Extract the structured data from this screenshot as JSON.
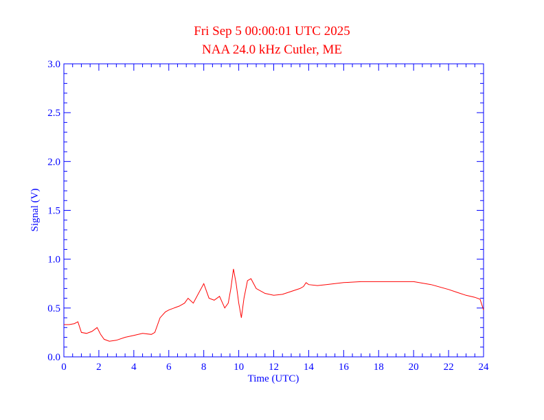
{
  "chart_data": {
    "type": "line",
    "title": "Fri Sep 5 00:00:01 UTC 2025",
    "subtitle": "NAA 24.0 kHz Cutler, ME",
    "xlabel": "Time (UTC)",
    "ylabel": "Signal (V)",
    "xlim": [
      0,
      24
    ],
    "ylim": [
      0,
      3.0
    ],
    "xticks": [
      "0",
      "2",
      "4",
      "6",
      "8",
      "10",
      "12",
      "14",
      "16",
      "18",
      "20",
      "22",
      "24"
    ],
    "yticks": [
      "0.0",
      "0.5",
      "1.0",
      "1.5",
      "2.0",
      "2.5",
      "3.0"
    ],
    "grid": false,
    "colors": {
      "axis": "#0000ff",
      "title": "#ff0000",
      "series": "#ff0000"
    },
    "series": [
      {
        "x": [
          0,
          0.3,
          0.6,
          0.8,
          1.0,
          1.3,
          1.6,
          1.9,
          2.1,
          2.3,
          2.6,
          3.0,
          3.5,
          4.0,
          4.5,
          5.0,
          5.2,
          5.5,
          5.8,
          6.0,
          6.3,
          6.6,
          6.9,
          7.1,
          7.4,
          7.7,
          8.0,
          8.3,
          8.6,
          8.9,
          9.2,
          9.4,
          9.55,
          9.7,
          9.85,
          10.0,
          10.15,
          10.3,
          10.5,
          10.7,
          11.0,
          11.5,
          12.0,
          12.5,
          13.0,
          13.5,
          13.7,
          13.85,
          14.0,
          14.5,
          15.0,
          16.0,
          17.0,
          18.0,
          19.0,
          20.0,
          21.0,
          22.0,
          22.5,
          23.0,
          23.5,
          23.8,
          24.0
        ],
        "y": [
          0.33,
          0.33,
          0.34,
          0.36,
          0.25,
          0.24,
          0.26,
          0.3,
          0.23,
          0.18,
          0.16,
          0.17,
          0.2,
          0.22,
          0.24,
          0.23,
          0.25,
          0.4,
          0.46,
          0.48,
          0.5,
          0.52,
          0.55,
          0.6,
          0.55,
          0.65,
          0.75,
          0.6,
          0.58,
          0.62,
          0.5,
          0.55,
          0.7,
          0.9,
          0.75,
          0.55,
          0.4,
          0.6,
          0.78,
          0.8,
          0.7,
          0.65,
          0.63,
          0.64,
          0.67,
          0.7,
          0.72,
          0.76,
          0.74,
          0.73,
          0.74,
          0.76,
          0.77,
          0.77,
          0.77,
          0.77,
          0.74,
          0.69,
          0.66,
          0.63,
          0.61,
          0.59,
          0.48
        ]
      }
    ]
  }
}
